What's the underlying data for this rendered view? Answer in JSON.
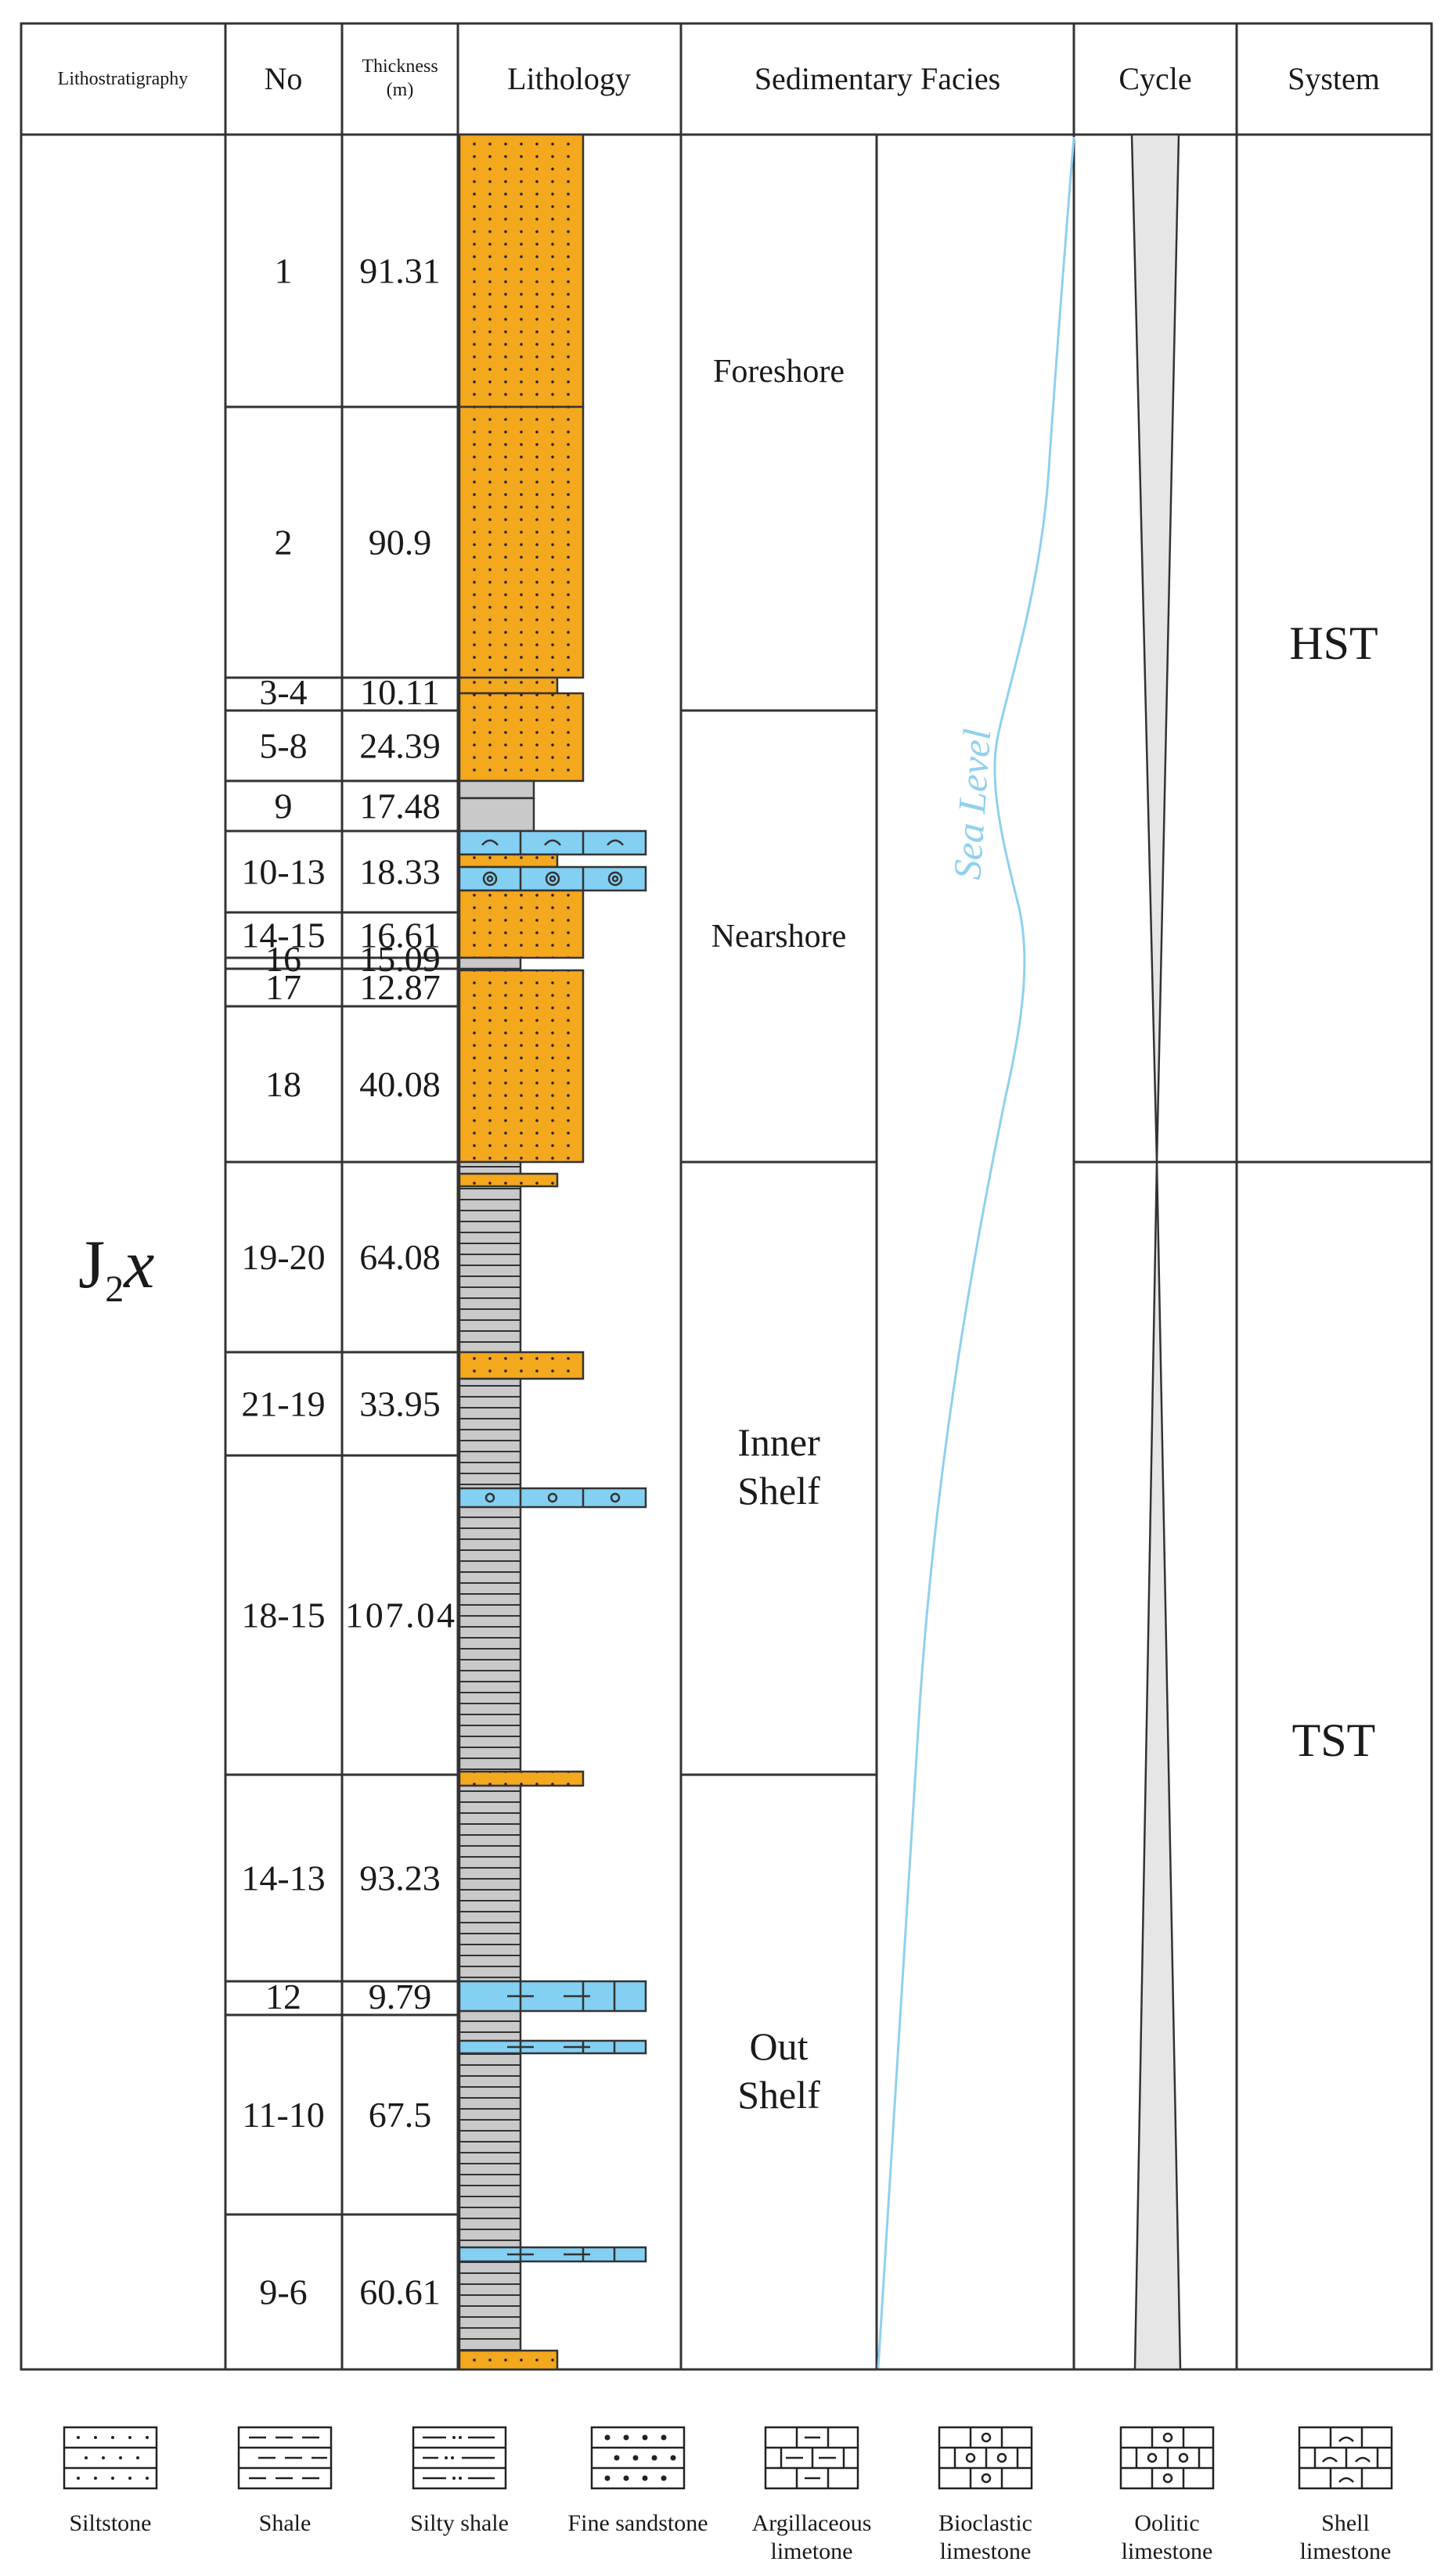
{
  "headers": {
    "lithostratigraphy": "Lithostratigraphy",
    "no": "No",
    "thickness_line1": "Thickness",
    "thickness_line2": "(m)",
    "lithology": "Lithology",
    "sedimentary_facies": "Sedimentary Facies",
    "cycle": "Cycle",
    "system": "System"
  },
  "formation": {
    "main": "J",
    "subscript": "2",
    "italic": "x"
  },
  "beds": [
    {
      "no": "1",
      "thickness": "91.31"
    },
    {
      "no": "2",
      "thickness": "90.9"
    },
    {
      "no": "3-4",
      "thickness": "10.11"
    },
    {
      "no": "5-8",
      "thickness": "24.39"
    },
    {
      "no": "9",
      "thickness": "17.48"
    },
    {
      "no": "10-13",
      "thickness": "18.33"
    },
    {
      "no": "14-15",
      "thickness": "16.61"
    },
    {
      "no": "16",
      "thickness": "15.09"
    },
    {
      "no": "17",
      "thickness": "12.87"
    },
    {
      "no": "18",
      "thickness": "40.08"
    },
    {
      "no": "19-20",
      "thickness": "64.08"
    },
    {
      "no": "21-19",
      "thickness": "33.95"
    },
    {
      "no": "18-15",
      "thickness": "107.04"
    },
    {
      "no": "14-13",
      "thickness": "93.23"
    },
    {
      "no": "12",
      "thickness": "9.79"
    },
    {
      "no": "11-10",
      "thickness": "67.5"
    },
    {
      "no": "9-6",
      "thickness": "60.61"
    }
  ],
  "facies": {
    "foreshore": "Foreshore",
    "nearshore": "Nearshore",
    "inner_shelf_1": "Inner",
    "inner_shelf_2": "Shelf",
    "out_shelf_1": "Out",
    "out_shelf_2": "Shelf"
  },
  "sea_level_label": "Sea Level",
  "systems": {
    "hst": "HST",
    "tst": "TST"
  },
  "legend": [
    {
      "line1": "Siltstone",
      "line2": ""
    },
    {
      "line1": "Shale",
      "line2": ""
    },
    {
      "line1": "Silty shale",
      "line2": ""
    },
    {
      "line1": "Fine sandstone",
      "line2": ""
    },
    {
      "line1": "Argillaceous",
      "line2": "limetone"
    },
    {
      "line1": "Bioclastic",
      "line2": "limestone"
    },
    {
      "line1": "Oolitic",
      "line2": "limestone"
    },
    {
      "line1": "Shell",
      "line2": "limestone"
    }
  ],
  "colors": {
    "sandstone": "#f4a81d",
    "shale": "#c9c9c9",
    "limestone": "#84d0f2",
    "sea_level": "#8fd0ee",
    "cycle_fill": "#e6e6e6",
    "grid": "#333333"
  }
}
